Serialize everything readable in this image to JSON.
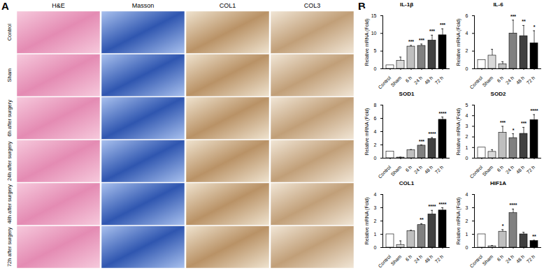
{
  "panel_labels": [
    "A",
    "B"
  ],
  "image_grid": {
    "columns": [
      "H&E",
      "Masson",
      "COL1",
      "COL3"
    ],
    "rows": [
      "Control",
      "Sham",
      "6h after surgery",
      "24h after surgery",
      "48h after surgery",
      "72h after surgery"
    ]
  },
  "chart_data": [
    {
      "type": "bar",
      "title": "IL-1β",
      "ylabel": "Relative mRNA (Fold)",
      "categories": [
        "Control",
        "Sham",
        "6 h",
        "24 h",
        "48 h",
        "72 h"
      ],
      "values": [
        1,
        2.3,
        6.3,
        6.5,
        8,
        9.5
      ],
      "errors": [
        null,
        1,
        0.3,
        0.5,
        1.5,
        1.8
      ],
      "annotations": [
        null,
        null,
        "***",
        "***",
        "***",
        "***"
      ],
      "colors": [
        "#ffffff",
        "#d9d9d9",
        "#bfbfbf",
        "#808080",
        "#404040",
        "#000000"
      ],
      "ylim": [
        0,
        15
      ],
      "yticks": [
        0,
        5,
        10,
        15
      ]
    },
    {
      "type": "bar",
      "title": "IL-6",
      "ylabel": "Relative mRNA (Fold)",
      "categories": [
        "Control",
        "Sham",
        "6 h",
        "24 h",
        "48 h",
        "72 h"
      ],
      "values": [
        1,
        1.5,
        0.5,
        4,
        3.7,
        2.9
      ],
      "errors": [
        null,
        0.7,
        0.3,
        1.5,
        1.2,
        1.4
      ],
      "annotations": [
        null,
        null,
        null,
        "***",
        "**",
        "*"
      ],
      "colors": [
        "#ffffff",
        "#d9d9d9",
        "#bfbfbf",
        "#808080",
        "#404040",
        "#000000"
      ],
      "ylim": [
        0,
        6
      ],
      "yticks": [
        0,
        2,
        4,
        6
      ]
    },
    {
      "type": "bar",
      "title": "SOD1",
      "ylabel": "Relative mRNA (Fold)",
      "categories": [
        "Control",
        "Sham",
        "6 h",
        "24 h",
        "48 h",
        "72 h"
      ],
      "values": [
        1,
        0.1,
        1.2,
        1.9,
        2.9,
        5.8
      ],
      "errors": [
        null,
        0.05,
        0.1,
        0.1,
        0.2,
        0.4
      ],
      "annotations": [
        null,
        null,
        null,
        "***",
        "****",
        "****"
      ],
      "colors": [
        "#ffffff",
        "#d9d9d9",
        "#bfbfbf",
        "#808080",
        "#404040",
        "#000000"
      ],
      "ylim": [
        0,
        8
      ],
      "yticks": [
        0,
        2,
        4,
        6,
        8
      ]
    },
    {
      "type": "bar",
      "title": "SOD2",
      "ylabel": "Relative mRNA (Fold)",
      "categories": [
        "Control",
        "Sham",
        "6 h",
        "24 h",
        "48 h",
        "72 h"
      ],
      "values": [
        1,
        0.6,
        2.4,
        1.9,
        2.3,
        3.6
      ],
      "errors": [
        null,
        0.2,
        0.6,
        0.4,
        0.6,
        0.5
      ],
      "annotations": [
        null,
        null,
        "***",
        "*",
        "***",
        "****"
      ],
      "colors": [
        "#ffffff",
        "#d9d9d9",
        "#bfbfbf",
        "#808080",
        "#404040",
        "#000000"
      ],
      "ylim": [
        0,
        5
      ],
      "yticks": [
        0,
        1,
        2,
        3,
        4,
        5
      ]
    },
    {
      "type": "bar",
      "title": "COL1",
      "ylabel": "Relative mRNA (Fold)",
      "categories": [
        "Control",
        "Sham",
        "6 h",
        "24 h",
        "48 h",
        "72 h"
      ],
      "values": [
        1,
        0.2,
        1.25,
        1.7,
        2.5,
        2.8
      ],
      "errors": [
        null,
        0.3,
        0.05,
        0.1,
        0.3,
        0.2
      ],
      "annotations": [
        null,
        null,
        null,
        "**",
        "****",
        "****"
      ],
      "colors": [
        "#ffffff",
        "#d9d9d9",
        "#bfbfbf",
        "#808080",
        "#404040",
        "#000000"
      ],
      "ylim": [
        0,
        4
      ],
      "yticks": [
        0,
        1,
        2,
        3,
        4
      ]
    },
    {
      "type": "bar",
      "title": "HIF1A",
      "ylabel": "Relative mRNA (Fold)",
      "categories": [
        "Control",
        "Sham",
        "6 h",
        "24 h",
        "48 h",
        "72 h"
      ],
      "values": [
        1,
        0.1,
        1.2,
        2.6,
        1,
        0.5
      ],
      "errors": [
        null,
        0.05,
        0.15,
        0.3,
        0.15,
        0.05
      ],
      "annotations": [
        null,
        null,
        "*",
        "****",
        null,
        "**"
      ],
      "colors": [
        "#ffffff",
        "#d9d9d9",
        "#bfbfbf",
        "#808080",
        "#404040",
        "#000000"
      ],
      "ylim": [
        0,
        4
      ],
      "yticks": [
        0,
        1,
        2,
        3,
        4
      ]
    }
  ]
}
